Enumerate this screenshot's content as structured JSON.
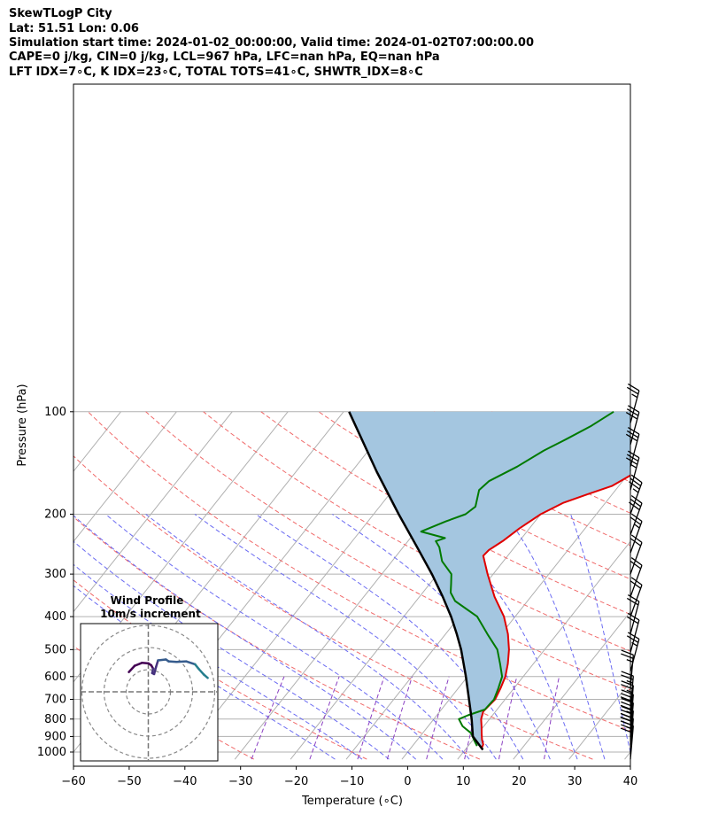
{
  "header": {
    "title": "SkewTLogP City",
    "location": "Lat: 51.51   Lon: 0.06",
    "times": "Simulation start time: 2024-01-02_00:00:00, Valid time: 2024-01-02T07:00:00.00",
    "params": "CAPE=0 j/kg, CIN=0 j/kg, LCL=967 hPa, LFC=nan hPa, EQ=nan hPa",
    "indices": "LFT IDX=7∘C, K IDX=23∘C, TOTAL TOTS=41∘C, SHWTR_IDX=8∘C"
  },
  "chart_data": {
    "type": "line",
    "subtype": "skew-t log-p",
    "xlabel": "Temperature (∘C)",
    "ylabel": "Pressure (hPa)",
    "xlim": [
      -60,
      40
    ],
    "ylim": [
      1050,
      100
    ],
    "x_ticks": [
      "−60",
      "−50",
      "−40",
      "−30",
      "−20",
      "−10",
      "0",
      "10",
      "20",
      "30",
      "40"
    ],
    "y_ticks": [
      "100",
      "200",
      "300",
      "400",
      "500",
      "600",
      "700",
      "800",
      "900",
      "1000"
    ],
    "y_scale": "log",
    "grid": true,
    "series": [
      {
        "color": "#e00000",
        "points": [
          [
            12.8,
            980
          ],
          [
            12.5,
            950
          ],
          [
            11.6,
            920
          ],
          [
            10.6,
            880
          ],
          [
            9.6,
            840
          ],
          [
            8.5,
            800
          ],
          [
            7.8,
            760
          ],
          [
            8.2,
            700
          ],
          [
            7.6,
            650
          ],
          [
            6.8,
            600
          ],
          [
            5.4,
            550
          ],
          [
            3.6,
            500
          ],
          [
            1.2,
            450
          ],
          [
            -2.0,
            400
          ],
          [
            -6.5,
            350
          ],
          [
            -11.0,
            300
          ],
          [
            -14.4,
            265
          ],
          [
            -14.2,
            255
          ],
          [
            -13.0,
            240
          ],
          [
            -11.8,
            220
          ],
          [
            -10.0,
            200
          ],
          [
            -7.5,
            185
          ],
          [
            -4.5,
            175
          ],
          [
            -1.2,
            165
          ],
          [
            1.2,
            150
          ],
          [
            3.3,
            140
          ],
          [
            5.6,
            130
          ],
          [
            8.4,
            120
          ],
          [
            10.8,
            113
          ],
          [
            13.4,
            105
          ],
          [
            15.2,
            100
          ]
        ]
      },
      {
        "color": "#007a00",
        "points": [
          [
            11.6,
            960
          ],
          [
            10.5,
            930
          ],
          [
            8.7,
            880
          ],
          [
            6.2,
            840
          ],
          [
            4.5,
            800
          ],
          [
            5.6,
            780
          ],
          [
            7.8,
            750
          ],
          [
            8.0,
            700
          ],
          [
            7.2,
            650
          ],
          [
            6.2,
            600
          ],
          [
            4.0,
            550
          ],
          [
            1.5,
            500
          ],
          [
            -2.5,
            450
          ],
          [
            -6.8,
            400
          ],
          [
            -13.0,
            360
          ],
          [
            -15.0,
            340
          ],
          [
            -16.2,
            320
          ],
          [
            -17.5,
            300
          ],
          [
            -21.0,
            275
          ],
          [
            -23.5,
            250
          ],
          [
            -25.0,
            240
          ],
          [
            -23.8,
            235
          ],
          [
            -29.0,
            225
          ],
          [
            -26.0,
            210
          ],
          [
            -23.5,
            200
          ],
          [
            -22.8,
            190
          ],
          [
            -24.5,
            170
          ],
          [
            -24.0,
            160
          ],
          [
            -21.0,
            145
          ],
          [
            -18.5,
            130
          ],
          [
            -16.0,
            120
          ],
          [
            -13.5,
            110
          ],
          [
            -11.5,
            100
          ]
        ]
      },
      {
        "color": "#000000",
        "points": [
          [
            13.2,
            985
          ],
          [
            9.5,
            900
          ],
          [
            6.8,
            800
          ],
          [
            3.5,
            700
          ],
          [
            -0.3,
            600
          ],
          [
            -5.0,
            500
          ],
          [
            -8.0,
            450
          ],
          [
            -11.5,
            400
          ],
          [
            -15.8,
            350
          ],
          [
            -21.0,
            300
          ],
          [
            -27.5,
            250
          ],
          [
            -35.5,
            200
          ],
          [
            -45.5,
            150
          ],
          [
            -59.0,
            100
          ]
        ]
      }
    ],
    "wind_barbs_kt": [
      [
        1050,
        5,
        30
      ],
      [
        1000,
        5,
        35
      ],
      [
        950,
        5,
        40
      ],
      [
        900,
        5,
        35
      ],
      [
        850,
        5,
        30
      ],
      [
        800,
        5,
        25
      ],
      [
        750,
        5,
        25
      ],
      [
        650,
        5,
        25
      ],
      [
        580,
        15,
        25
      ],
      [
        510,
        15,
        20
      ],
      [
        450,
        15,
        20
      ],
      [
        400,
        20,
        20
      ],
      [
        350,
        20,
        20
      ],
      [
        300,
        20,
        20
      ],
      [
        260,
        20,
        25
      ],
      [
        230,
        20,
        30
      ],
      [
        200,
        20,
        35
      ],
      [
        170,
        15,
        35
      ],
      [
        145,
        15,
        30
      ],
      [
        125,
        15,
        30
      ],
      [
        108,
        15,
        25
      ]
    ],
    "inset": {
      "title": "Wind Profile",
      "subtitle": "10m/s increment",
      "hodograph": [
        [
          -4,
          1.5
        ],
        [
          -2.8,
          2.8
        ],
        [
          -1.3,
          3.4
        ],
        [
          0,
          3.3
        ],
        [
          0.6,
          2.9
        ],
        [
          1.0,
          2.2
        ],
        [
          0.8,
          1.3
        ],
        [
          1.2,
          1.1
        ],
        [
          1.6,
          2.6
        ],
        [
          2.0,
          3.9
        ],
        [
          3.6,
          4.1
        ],
        [
          4.2,
          3.7
        ],
        [
          5.8,
          3.6
        ],
        [
          7.8,
          3.7
        ],
        [
          9.6,
          3.1
        ],
        [
          10.4,
          2.1
        ],
        [
          11.4,
          1.0
        ],
        [
          12.2,
          0.3
        ]
      ]
    }
  }
}
